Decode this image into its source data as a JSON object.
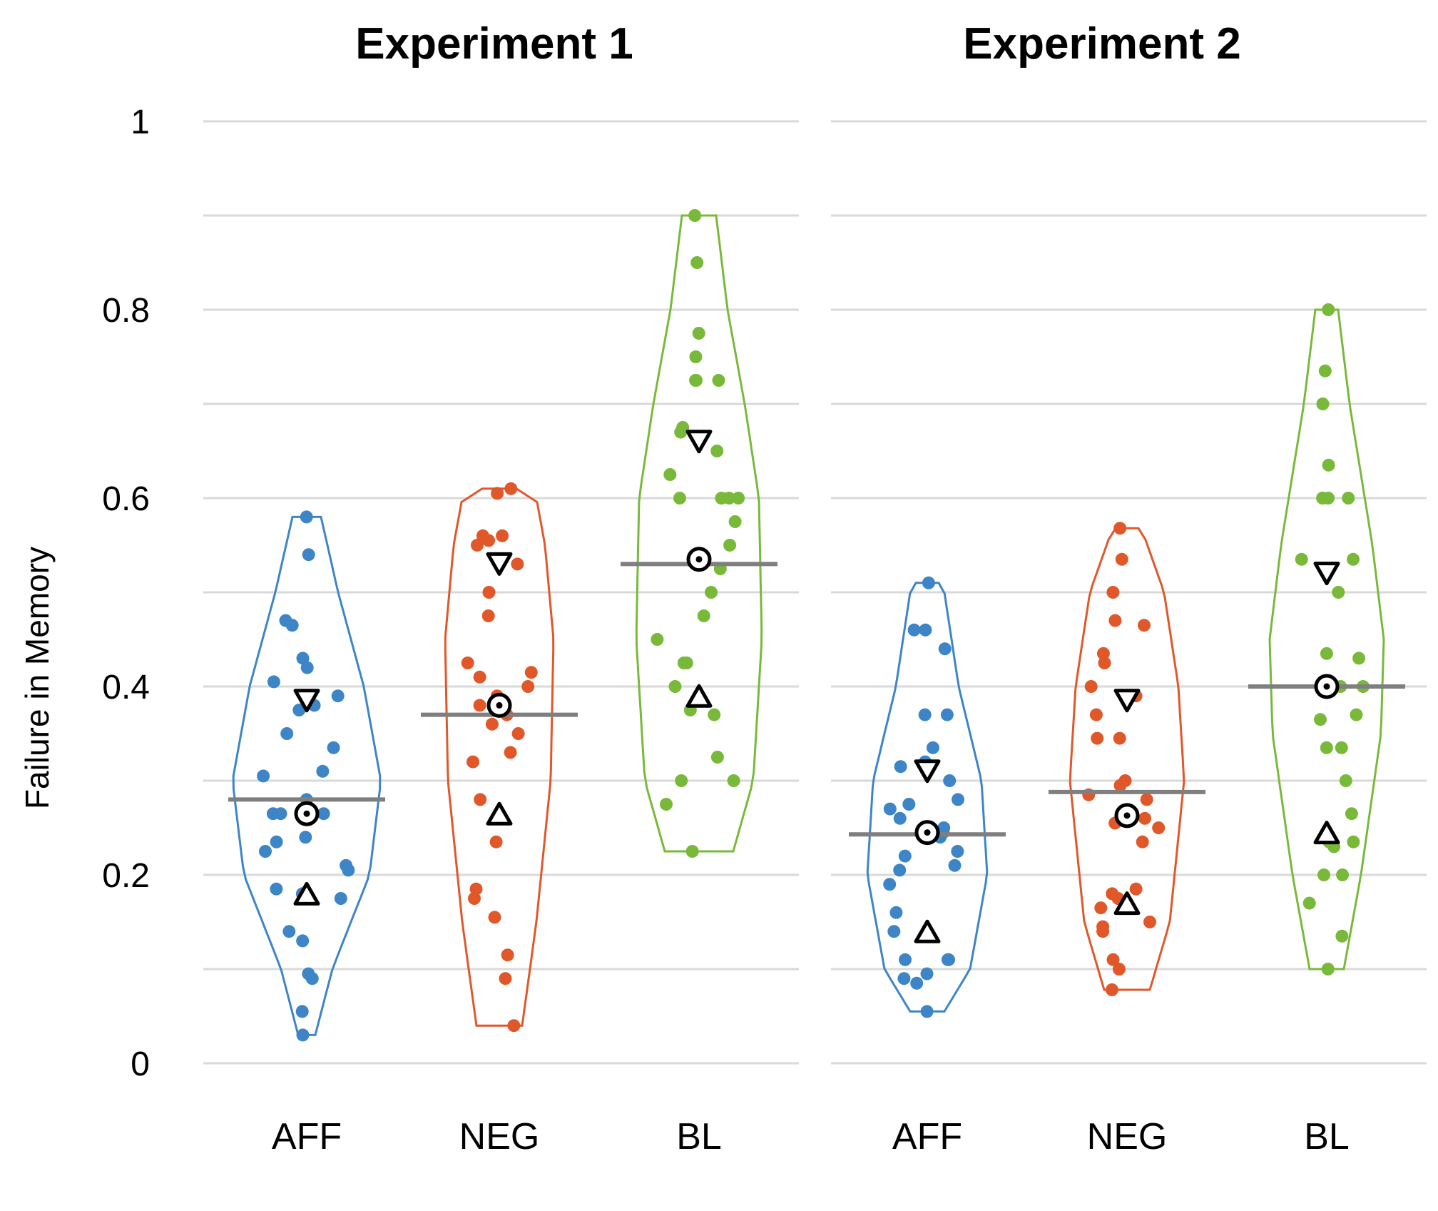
{
  "chart_data": {
    "type": "violin-scatter",
    "ylabel": "Failure in Memory",
    "ylim": [
      0,
      1
    ],
    "yticks": [
      "0",
      "0.2",
      "0.4",
      "0.6",
      "0.8",
      "1"
    ],
    "colors": {
      "AFF": "#3d85c6",
      "NEG": "#e0582a",
      "BL": "#79b93a",
      "grid": "#d9d9d9",
      "mean_bar": "#7f7f7f"
    },
    "panels": [
      {
        "title": "Experiment 1",
        "groups": [
          {
            "label": "AFF",
            "color": "#3d85c6",
            "mean": 0.28,
            "median": 0.265,
            "q1": 0.18,
            "q3": 0.385,
            "min": 0.03,
            "max": 0.58,
            "violin": [
              [
                0.03,
                0.03
              ],
              [
                0.1,
                0.09
              ],
              [
                0.2,
                0.22
              ],
              [
                0.3,
                0.26
              ],
              [
                0.4,
                0.2
              ],
              [
                0.5,
                0.11
              ],
              [
                0.58,
                0.05
              ]
            ],
            "points": [
              0.58,
              0.54,
              0.47,
              0.465,
              0.43,
              0.42,
              0.405,
              0.39,
              0.38,
              0.375,
              0.35,
              0.335,
              0.31,
              0.305,
              0.28,
              0.265,
              0.265,
              0.265,
              0.265,
              0.24,
              0.235,
              0.225,
              0.21,
              0.205,
              0.185,
              0.18,
              0.175,
              0.14,
              0.13,
              0.095,
              0.09,
              0.055,
              0.03
            ]
          },
          {
            "label": "NEG",
            "color": "#e0582a",
            "mean": 0.37,
            "median": 0.38,
            "q1": 0.265,
            "q3": 0.53,
            "min": 0.04,
            "max": 0.61,
            "violin": [
              [
                0.04,
                0.08
              ],
              [
                0.15,
                0.13
              ],
              [
                0.3,
                0.18
              ],
              [
                0.45,
                0.19
              ],
              [
                0.55,
                0.16
              ],
              [
                0.6,
                0.13
              ],
              [
                0.61,
                0.06
              ]
            ],
            "points": [
              0.61,
              0.605,
              0.56,
              0.56,
              0.555,
              0.55,
              0.53,
              0.5,
              0.475,
              0.425,
              0.415,
              0.41,
              0.4,
              0.39,
              0.38,
              0.37,
              0.36,
              0.35,
              0.33,
              0.32,
              0.28,
              0.235,
              0.185,
              0.175,
              0.155,
              0.115,
              0.09,
              0.04
            ]
          },
          {
            "label": "BL",
            "color": "#79b93a",
            "mean": 0.53,
            "median": 0.535,
            "q1": 0.39,
            "q3": 0.66,
            "min": 0.225,
            "max": 0.9,
            "violin": [
              [
                0.225,
                0.12
              ],
              [
                0.3,
                0.19
              ],
              [
                0.45,
                0.22
              ],
              [
                0.6,
                0.21
              ],
              [
                0.7,
                0.16
              ],
              [
                0.8,
                0.1
              ],
              [
                0.9,
                0.06
              ]
            ],
            "points": [
              0.9,
              0.85,
              0.775,
              0.75,
              0.725,
              0.725,
              0.725,
              0.675,
              0.67,
              0.65,
              0.625,
              0.6,
              0.6,
              0.6,
              0.6,
              0.575,
              0.55,
              0.525,
              0.5,
              0.475,
              0.45,
              0.425,
              0.425,
              0.4,
              0.375,
              0.37,
              0.325,
              0.3,
              0.3,
              0.275,
              0.225
            ]
          }
        ]
      },
      {
        "title": "Experiment 2",
        "groups": [
          {
            "label": "AFF",
            "color": "#3d85c6",
            "mean": 0.243,
            "median": 0.245,
            "q1": 0.14,
            "q3": 0.31,
            "min": 0.055,
            "max": 0.51,
            "violin": [
              [
                0.055,
                0.06
              ],
              [
                0.1,
                0.15
              ],
              [
                0.2,
                0.21
              ],
              [
                0.3,
                0.19
              ],
              [
                0.4,
                0.11
              ],
              [
                0.5,
                0.06
              ],
              [
                0.51,
                0.04
              ]
            ],
            "points": [
              0.51,
              0.46,
              0.46,
              0.44,
              0.37,
              0.37,
              0.335,
              0.32,
              0.315,
              0.3,
              0.28,
              0.275,
              0.27,
              0.26,
              0.25,
              0.245,
              0.24,
              0.225,
              0.22,
              0.21,
              0.205,
              0.19,
              0.16,
              0.14,
              0.135,
              0.11,
              0.11,
              0.11,
              0.095,
              0.09,
              0.085,
              0.055
            ]
          },
          {
            "label": "NEG",
            "color": "#e0582a",
            "mean": 0.288,
            "median": 0.263,
            "q1": 0.17,
            "q3": 0.385,
            "min": 0.078,
            "max": 0.568,
            "violin": [
              [
                0.078,
                0.08
              ],
              [
                0.15,
                0.15
              ],
              [
                0.3,
                0.2
              ],
              [
                0.4,
                0.18
              ],
              [
                0.5,
                0.13
              ],
              [
                0.56,
                0.06
              ],
              [
                0.568,
                0.04
              ]
            ],
            "points": [
              0.568,
              0.535,
              0.5,
              0.47,
              0.465,
              0.435,
              0.425,
              0.4,
              0.39,
              0.37,
              0.345,
              0.345,
              0.3,
              0.295,
              0.285,
              0.28,
              0.265,
              0.26,
              0.255,
              0.25,
              0.235,
              0.185,
              0.18,
              0.175,
              0.165,
              0.15,
              0.145,
              0.14,
              0.11,
              0.1,
              0.078
            ]
          },
          {
            "label": "BL",
            "color": "#79b93a",
            "mean": 0.4,
            "median": 0.4,
            "q1": 0.245,
            "q3": 0.52,
            "min": 0.1,
            "max": 0.8,
            "violin": [
              [
                0.1,
                0.06
              ],
              [
                0.2,
                0.12
              ],
              [
                0.35,
                0.19
              ],
              [
                0.45,
                0.2
              ],
              [
                0.55,
                0.16
              ],
              [
                0.7,
                0.08
              ],
              [
                0.8,
                0.04
              ]
            ],
            "points": [
              0.8,
              0.735,
              0.7,
              0.635,
              0.6,
              0.6,
              0.6,
              0.535,
              0.535,
              0.5,
              0.435,
              0.43,
              0.4,
              0.4,
              0.4,
              0.37,
              0.365,
              0.335,
              0.335,
              0.3,
              0.265,
              0.235,
              0.235,
              0.23,
              0.2,
              0.2,
              0.17,
              0.135,
              0.1
            ]
          }
        ]
      }
    ]
  }
}
